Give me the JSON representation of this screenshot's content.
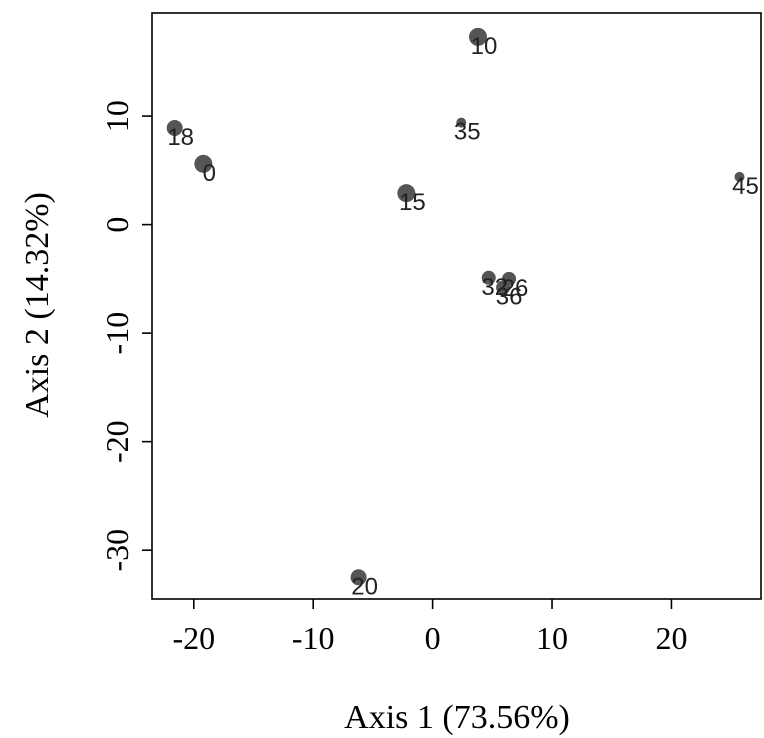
{
  "chart_data": {
    "type": "scatter",
    "xlabel": "Axis 1 (73.56%)",
    "ylabel": "Axis 2 (14.32%)",
    "xlim": [
      -23.5,
      27.5
    ],
    "ylim": [
      -34.5,
      19.5
    ],
    "xticks": [
      {
        "value": -20,
        "label": "-20"
      },
      {
        "value": -10,
        "label": "-10"
      },
      {
        "value": 0,
        "label": "0"
      },
      {
        "value": 10,
        "label": "10"
      },
      {
        "value": 20,
        "label": "20"
      }
    ],
    "yticks": [
      {
        "value": -30,
        "label": "-30"
      },
      {
        "value": -20,
        "label": "-20"
      },
      {
        "value": -10,
        "label": "-10"
      },
      {
        "value": 0,
        "label": "0"
      },
      {
        "value": 10,
        "label": "10"
      }
    ],
    "grid": false,
    "points": [
      {
        "label": "10",
        "x": 3.8,
        "y": 17.3,
        "size": 9
      },
      {
        "label": "35",
        "x": 2.4,
        "y": 9.4,
        "size": 5
      },
      {
        "label": "18",
        "x": -21.6,
        "y": 8.9,
        "size": 8
      },
      {
        "label": "0",
        "x": -19.2,
        "y": 5.6,
        "size": 9
      },
      {
        "label": "15",
        "x": -2.2,
        "y": 2.9,
        "size": 9
      },
      {
        "label": "45",
        "x": 25.7,
        "y": 4.4,
        "size": 5
      },
      {
        "label": "32",
        "x": 4.7,
        "y": -4.9,
        "size": 7
      },
      {
        "label": "26",
        "x": 6.4,
        "y": -5.0,
        "size": 7
      },
      {
        "label": "36",
        "x": 5.9,
        "y": -5.8,
        "size": 7
      },
      {
        "label": "20",
        "x": -6.2,
        "y": -32.5,
        "size": 8
      }
    ],
    "point_color": "#555555"
  }
}
